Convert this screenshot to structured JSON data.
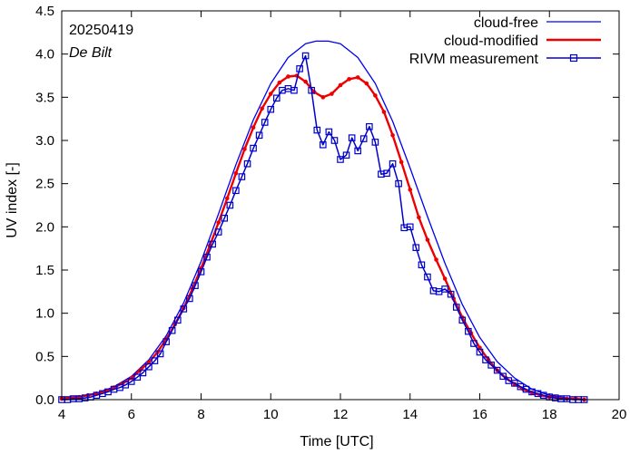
{
  "chart_data": {
    "type": "line",
    "title": "",
    "annotations": [
      "20250419",
      "De Bilt"
    ],
    "xlabel": "Time  [UTC]",
    "ylabel": "UV index  [-]",
    "xlim": [
      4,
      20
    ],
    "ylim": [
      0,
      4.5
    ],
    "xticks": [
      4,
      6,
      8,
      10,
      12,
      14,
      16,
      18,
      20
    ],
    "yticks": [
      0.0,
      0.5,
      1.0,
      1.5,
      2.0,
      2.5,
      3.0,
      3.5,
      4.0,
      4.5
    ],
    "grid": false,
    "legend_position": "top-right",
    "series": [
      {
        "name": "cloud-free",
        "color": "#0000ee",
        "marker": "none",
        "x": [
          4.0,
          4.5,
          5.0,
          5.5,
          6.0,
          6.5,
          7.0,
          7.5,
          8.0,
          8.5,
          9.0,
          9.5,
          10.0,
          10.5,
          11.0,
          11.3,
          11.65,
          12.0,
          12.5,
          13.0,
          13.5,
          14.0,
          14.5,
          15.0,
          15.5,
          16.0,
          16.5,
          17.0,
          17.5,
          18.0,
          18.5,
          19.0
        ],
        "y": [
          0.01,
          0.03,
          0.07,
          0.15,
          0.27,
          0.46,
          0.74,
          1.12,
          1.6,
          2.15,
          2.72,
          3.24,
          3.66,
          3.96,
          4.12,
          4.15,
          4.15,
          4.12,
          3.96,
          3.66,
          3.22,
          2.68,
          2.12,
          1.58,
          1.1,
          0.72,
          0.44,
          0.25,
          0.12,
          0.05,
          0.02,
          0.0
        ]
      },
      {
        "name": "cloud-modified",
        "color": "#ee0000",
        "marker": "dot",
        "x": [
          4.0,
          4.25,
          4.5,
          4.75,
          5.0,
          5.25,
          5.5,
          5.75,
          6.0,
          6.25,
          6.5,
          6.75,
          7.0,
          7.25,
          7.5,
          7.75,
          8.0,
          8.25,
          8.5,
          8.75,
          9.0,
          9.25,
          9.5,
          9.75,
          10.0,
          10.25,
          10.5,
          10.75,
          11.0,
          11.25,
          11.5,
          11.75,
          12.0,
          12.25,
          12.5,
          12.75,
          13.0,
          13.25,
          13.5,
          13.75,
          14.0,
          14.25,
          14.5,
          14.75,
          15.0,
          15.25,
          15.5,
          15.75,
          16.0,
          16.25,
          16.5,
          16.75,
          17.0,
          17.25,
          17.5,
          17.75,
          18.0,
          18.25,
          18.5,
          18.75,
          19.0
        ],
        "y": [
          0.01,
          0.02,
          0.03,
          0.05,
          0.07,
          0.1,
          0.14,
          0.19,
          0.25,
          0.34,
          0.43,
          0.55,
          0.7,
          0.87,
          1.06,
          1.28,
          1.52,
          1.78,
          2.05,
          2.33,
          2.62,
          2.9,
          3.15,
          3.37,
          3.54,
          3.67,
          3.74,
          3.75,
          3.68,
          3.56,
          3.5,
          3.54,
          3.64,
          3.71,
          3.73,
          3.66,
          3.52,
          3.33,
          3.06,
          2.75,
          2.43,
          2.11,
          1.85,
          1.62,
          1.4,
          1.17,
          0.95,
          0.77,
          0.6,
          0.46,
          0.34,
          0.25,
          0.18,
          0.12,
          0.08,
          0.05,
          0.03,
          0.02,
          0.01,
          0.01,
          0.0
        ]
      },
      {
        "name": "RIVM measurement",
        "color": "#0000cc",
        "marker": "square",
        "x": [
          4.0,
          4.17,
          4.33,
          4.5,
          4.67,
          4.83,
          5.0,
          5.17,
          5.33,
          5.5,
          5.67,
          5.83,
          6.0,
          6.17,
          6.33,
          6.5,
          6.67,
          6.83,
          7.0,
          7.17,
          7.33,
          7.5,
          7.67,
          7.83,
          8.0,
          8.17,
          8.33,
          8.5,
          8.67,
          8.83,
          9.0,
          9.17,
          9.33,
          9.5,
          9.67,
          9.83,
          10.0,
          10.17,
          10.33,
          10.5,
          10.67,
          10.83,
          11.0,
          11.17,
          11.33,
          11.5,
          11.67,
          11.83,
          12.0,
          12.17,
          12.33,
          12.5,
          12.67,
          12.83,
          13.0,
          13.17,
          13.33,
          13.5,
          13.67,
          13.83,
          14.0,
          14.17,
          14.33,
          14.5,
          14.67,
          14.83,
          15.0,
          15.17,
          15.33,
          15.5,
          15.67,
          15.83,
          16.0,
          16.17,
          16.33,
          16.5,
          16.67,
          16.83,
          17.0,
          17.17,
          17.33,
          17.5,
          17.67,
          17.83,
          18.0,
          18.17,
          18.33,
          18.5,
          18.67,
          18.83,
          19.0
        ],
        "y": [
          0.0,
          0.0,
          0.01,
          0.01,
          0.02,
          0.03,
          0.05,
          0.07,
          0.09,
          0.12,
          0.14,
          0.17,
          0.21,
          0.26,
          0.31,
          0.38,
          0.45,
          0.53,
          0.67,
          0.8,
          0.92,
          1.05,
          1.17,
          1.32,
          1.48,
          1.65,
          1.8,
          1.94,
          2.1,
          2.25,
          2.42,
          2.58,
          2.73,
          2.91,
          3.06,
          3.21,
          3.36,
          3.49,
          3.58,
          3.6,
          3.58,
          3.83,
          3.98,
          3.58,
          3.12,
          2.95,
          3.1,
          3.0,
          2.78,
          2.83,
          3.03,
          2.88,
          3.02,
          3.16,
          2.98,
          2.61,
          2.62,
          2.73,
          2.5,
          1.99,
          2.0,
          1.76,
          1.56,
          1.42,
          1.26,
          1.25,
          1.28,
          1.22,
          1.07,
          0.92,
          0.79,
          0.65,
          0.55,
          0.46,
          0.4,
          0.34,
          0.27,
          0.22,
          0.19,
          0.15,
          0.12,
          0.09,
          0.07,
          0.05,
          0.03,
          0.02,
          0.01,
          0.01,
          0.0,
          0.0,
          0.0
        ]
      }
    ]
  }
}
